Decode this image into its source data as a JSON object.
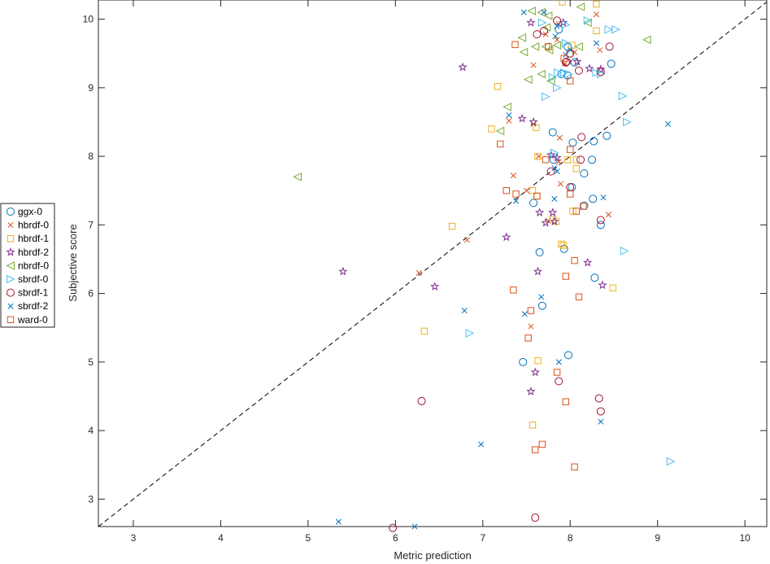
{
  "chart_data": {
    "type": "scatter",
    "xlabel": "Metric prediction",
    "ylabel": "Subjective score",
    "xlim": [
      2.6,
      10.25
    ],
    "ylim": [
      2.6,
      10.28
    ],
    "xticks": [
      3,
      4,
      5,
      6,
      7,
      8,
      9,
      10
    ],
    "yticks": [
      3,
      4,
      5,
      6,
      7,
      8,
      9,
      10
    ],
    "reference_line": "y = x (dashed)",
    "legend_location": "outside-left",
    "series": [
      {
        "name": "ggx-0",
        "marker": "circle",
        "color": "#0072BD",
        "x": [
          7.9,
          7.87,
          7.97,
          7.97,
          8.05,
          8.47,
          7.8,
          8.03,
          7.81,
          8.25,
          8.27,
          8.42,
          8.16,
          8.02,
          8.16,
          8.26,
          8.35,
          7.58,
          7.65,
          7.93,
          7.68,
          8.28,
          7.46,
          7.98
        ],
        "y": [
          9.2,
          9.85,
          9.6,
          9.18,
          9.37,
          9.35,
          8.35,
          8.2,
          7.95,
          7.95,
          8.22,
          8.3,
          7.75,
          7.55,
          7.28,
          7.38,
          7.0,
          7.32,
          6.6,
          6.65,
          5.82,
          6.23,
          5.0,
          5.1
        ]
      },
      {
        "name": "hbrdf-0",
        "marker": "x",
        "color": "#D95319",
        "x": [
          8.3,
          7.72,
          7.85,
          8.05,
          7.94,
          7.58,
          7.58,
          7.3,
          7.88,
          7.64,
          7.35,
          7.5,
          8.44,
          6.82,
          6.27,
          7.89,
          7.55,
          7.87,
          8.34,
          7.87,
          7.75
        ],
        "y": [
          10.07,
          9.78,
          9.7,
          9.52,
          9.35,
          9.33,
          8.47,
          8.52,
          8.27,
          8.0,
          7.72,
          7.5,
          7.15,
          6.78,
          6.3,
          7.6,
          5.52,
          7.92,
          9.55,
          9.93,
          7.06
        ],
        "x2": [],
        "y2": []
      },
      {
        "name": "hbrdf-1",
        "marker": "square",
        "color": "#EDB120",
        "x": [
          7.91,
          8.3,
          8.3,
          8.02,
          7.17,
          7.1,
          7.61,
          7.63,
          7.97,
          8.07,
          8.07,
          7.62,
          7.57,
          8.03,
          7.8,
          7.84,
          7.9,
          6.65,
          6.33,
          8.49,
          7.92,
          7.57,
          7.63
        ],
        "y": [
          10.25,
          10.22,
          9.83,
          9.62,
          9.02,
          8.4,
          8.42,
          8.0,
          7.95,
          7.95,
          7.82,
          7.42,
          7.5,
          7.2,
          7.08,
          7.05,
          6.72,
          6.98,
          5.45,
          6.08,
          6.7,
          4.08,
          5.02
        ]
      },
      {
        "name": "hbrdf-2",
        "marker": "star",
        "color": "#7E2F8E",
        "x": [
          7.92,
          7.55,
          8.22,
          8.35,
          8.08,
          6.77,
          7.45,
          7.58,
          7.78,
          7.85,
          7.65,
          7.72,
          7.8,
          7.82,
          8.2,
          7.27,
          7.63,
          5.4,
          6.45,
          8.37,
          7.6,
          7.55
        ],
        "y": [
          9.95,
          9.95,
          9.28,
          9.27,
          9.38,
          9.3,
          8.55,
          8.5,
          8.02,
          7.98,
          7.18,
          7.03,
          7.18,
          7.05,
          6.45,
          6.82,
          6.32,
          6.32,
          6.1,
          6.12,
          4.85,
          4.57
        ]
      },
      {
        "name": "nbrdf-0",
        "marker": "triangle-left",
        "color": "#77AC30",
        "x": [
          7.56,
          7.75,
          7.67,
          8.12,
          7.45,
          7.6,
          7.47,
          7.76,
          7.72,
          7.85,
          8.1,
          8.2,
          7.67,
          7.52,
          7.78,
          8.88,
          7.28,
          7.2,
          4.88,
          7.73
        ],
        "y": [
          10.12,
          10.05,
          10.1,
          10.18,
          9.73,
          9.6,
          9.52,
          9.55,
          9.6,
          9.62,
          9.6,
          9.95,
          9.2,
          9.12,
          9.1,
          9.7,
          8.72,
          8.37,
          7.7,
          9.88
        ]
      },
      {
        "name": "sbrdf-0",
        "marker": "triangle-right",
        "color": "#4DBEEE",
        "x": [
          7.68,
          7.95,
          8.2,
          8.44,
          8.52,
          7.95,
          7.93,
          8.3,
          7.86,
          7.98,
          7.8,
          7.85,
          7.72,
          8.6,
          7.82,
          8.65,
          8.62,
          6.85,
          9.15,
          8.35
        ],
        "y": [
          9.95,
          9.92,
          9.98,
          9.85,
          9.85,
          9.65,
          9.22,
          9.22,
          9.22,
          9.2,
          9.15,
          9.0,
          8.87,
          8.88,
          8.05,
          8.5,
          6.62,
          5.42,
          3.55,
          9.2
        ]
      },
      {
        "name": "sbrdf-1",
        "marker": "circle",
        "color": "#A2142F",
        "x": [
          7.85,
          7.7,
          7.62,
          8.0,
          7.96,
          8.1,
          8.35,
          8.45,
          8.13,
          8.12,
          7.78,
          8.0,
          8.35,
          7.87,
          8.33,
          8.35,
          6.3,
          7.6,
          5.97,
          7.95
        ],
        "y": [
          9.98,
          9.83,
          9.78,
          9.5,
          9.38,
          9.25,
          9.23,
          9.6,
          8.28,
          7.95,
          7.78,
          7.55,
          7.07,
          4.72,
          4.47,
          4.28,
          4.43,
          2.73,
          2.58,
          9.37
        ]
      },
      {
        "name": "sbrdf-2",
        "marker": "x",
        "color": "#0072BD",
        "x": [
          7.47,
          7.7,
          7.85,
          7.83,
          8.3,
          7.95,
          7.3,
          7.38,
          7.85,
          7.82,
          8.38,
          7.67,
          6.79,
          7.48,
          7.87,
          8.35,
          6.98,
          5.35,
          6.22,
          9.12,
          8.0,
          7.82
        ],
        "y": [
          10.1,
          10.1,
          9.9,
          9.75,
          9.65,
          9.48,
          8.6,
          7.35,
          7.78,
          7.38,
          7.4,
          5.95,
          5.75,
          5.7,
          5.0,
          4.13,
          3.8,
          2.67,
          2.6,
          8.47,
          9.55,
          7.83
        ]
      },
      {
        "name": "ward-0",
        "marker": "square",
        "color": "#D95319",
        "x": [
          7.37,
          7.75,
          7.93,
          8.0,
          7.2,
          7.72,
          7.27,
          7.38,
          7.62,
          8.0,
          8.15,
          8.07,
          7.95,
          8.05,
          8.1,
          7.35,
          7.55,
          7.52,
          7.85,
          7.95,
          7.68,
          7.6,
          8.05,
          8.0
        ],
        "y": [
          9.63,
          9.6,
          9.43,
          9.1,
          8.18,
          7.95,
          7.5,
          7.45,
          7.42,
          7.45,
          7.27,
          7.2,
          6.25,
          6.48,
          5.95,
          6.05,
          5.75,
          5.35,
          4.85,
          4.42,
          3.8,
          3.72,
          3.47,
          8.1
        ]
      }
    ]
  }
}
